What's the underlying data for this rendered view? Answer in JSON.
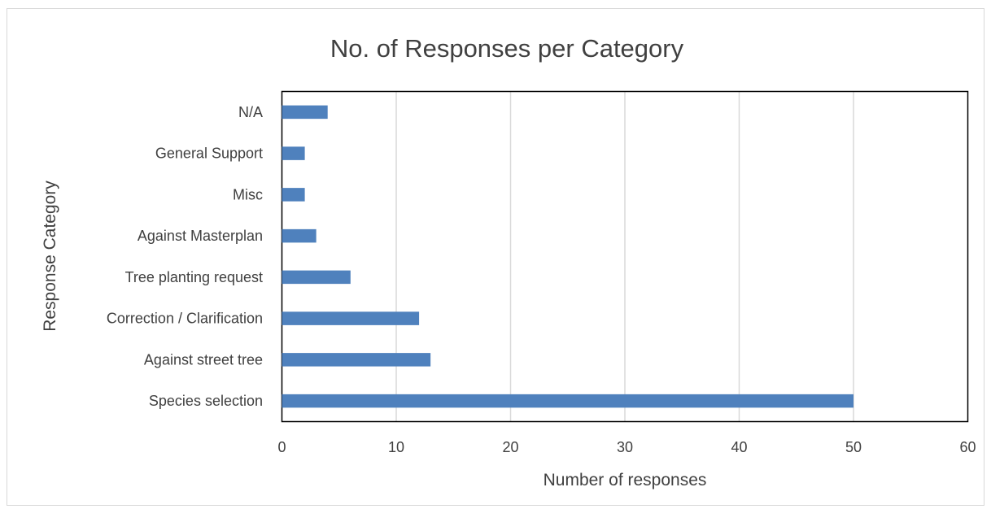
{
  "chart_data": {
    "type": "bar",
    "orientation": "horizontal",
    "title": "No. of Responses per Category",
    "xlabel": "Number of responses",
    "ylabel": "Response Category",
    "categories": [
      "N/A",
      "General Support",
      "Misc",
      "Against Masterplan",
      "Tree planting request",
      "Correction / Clarification",
      "Against street tree",
      "Species selection"
    ],
    "values": [
      4,
      2,
      2,
      3,
      6,
      12,
      13,
      50
    ],
    "xlim": [
      0,
      60
    ],
    "xticks": [
      "0",
      "10",
      "20",
      "30",
      "40",
      "50",
      "60"
    ],
    "grid": "vertical",
    "legend": "none",
    "colors": {
      "bar": "#4f81bd",
      "grid": "#d9d9d9",
      "axis": "#000000",
      "text": "#404040"
    }
  }
}
